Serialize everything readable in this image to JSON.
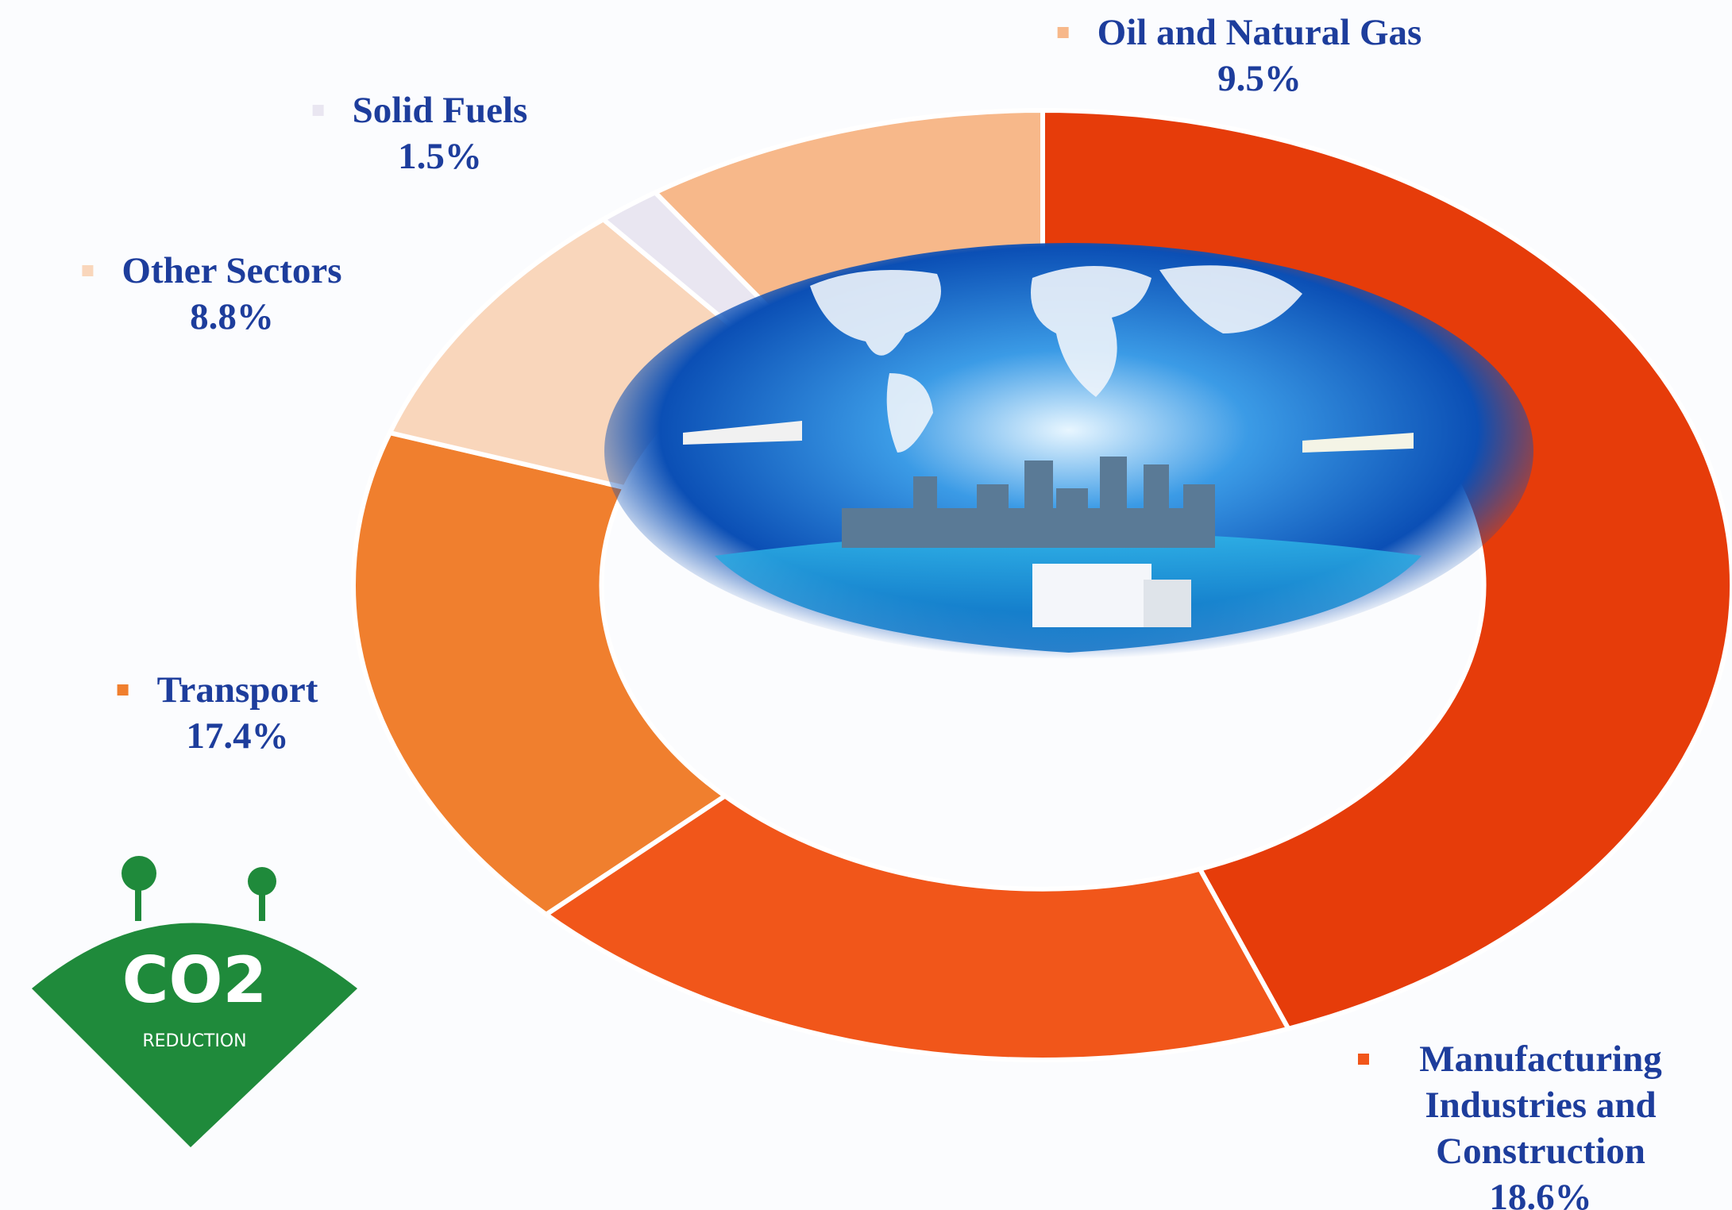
{
  "chart_data": {
    "type": "donut",
    "categories": [
      null,
      "Manufacturing Industries and Construction",
      "Transport",
      "Other Sectors",
      "Solid Fuels",
      "Oil and Natural Gas"
    ],
    "values": [
      44.2,
      18.6,
      17.4,
      8.8,
      1.5,
      9.5
    ],
    "value_labels": [
      null,
      "18.6%",
      "17.4%",
      "8.8%",
      "1.5%",
      "9.5%"
    ],
    "colors": [
      "#e63c0a",
      "#f1561a",
      "#f07f2e",
      "#f9d6bb",
      "#e9e6f1",
      "#f7b88a"
    ]
  },
  "logo": {
    "title": "CO2",
    "subtitle": "REDUCTION"
  }
}
